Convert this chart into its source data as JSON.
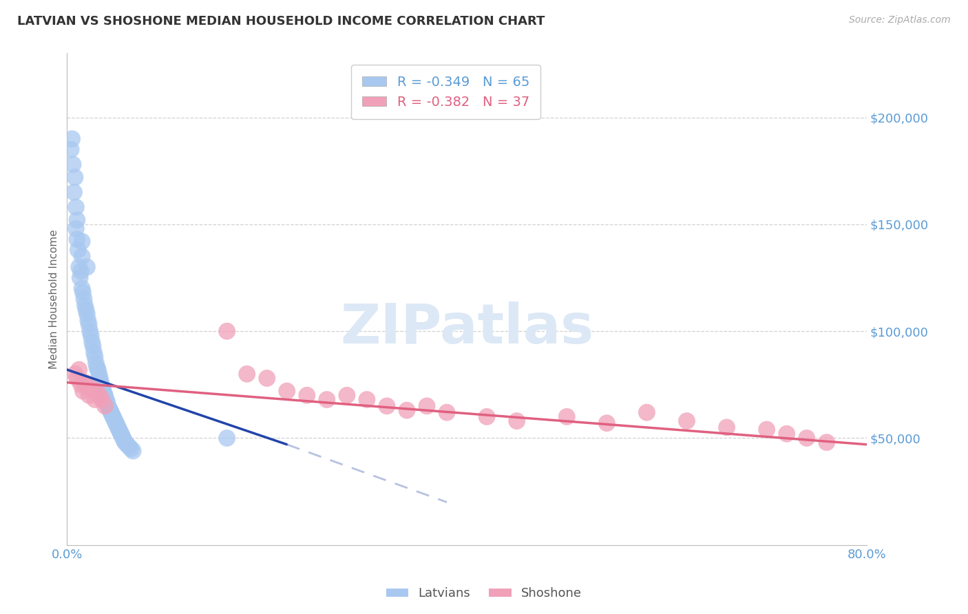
{
  "title": "LATVIAN VS SHOSHONE MEDIAN HOUSEHOLD INCOME CORRELATION CHART",
  "source": "Source: ZipAtlas.com",
  "ylabel": "Median Household Income",
  "xlim": [
    0.0,
    0.8
  ],
  "ylim": [
    0,
    230000
  ],
  "latvian_R": -0.349,
  "latvian_N": 65,
  "shoshone_R": -0.382,
  "shoshone_N": 37,
  "blue_color": "#A8C8F0",
  "blue_line_color": "#2244AA",
  "blue_line_dashed_color": "#8899CC",
  "pink_color": "#F0A0B8",
  "pink_line_color": "#E06080",
  "axis_color": "#5B9BD5",
  "grid_color": "#CCCCCC",
  "background_color": "#FFFFFF",
  "watermark_color": "#DCE8F5",
  "latvian_x": [
    0.004,
    0.005,
    0.006,
    0.007,
    0.008,
    0.009,
    0.009,
    0.01,
    0.01,
    0.011,
    0.012,
    0.013,
    0.014,
    0.015,
    0.015,
    0.016,
    0.017,
    0.018,
    0.019,
    0.02,
    0.021,
    0.022,
    0.023,
    0.024,
    0.025,
    0.026,
    0.027,
    0.028,
    0.029,
    0.03,
    0.031,
    0.032,
    0.033,
    0.034,
    0.035,
    0.036,
    0.037,
    0.038,
    0.039,
    0.04,
    0.041,
    0.042,
    0.043,
    0.044,
    0.045,
    0.046,
    0.047,
    0.048,
    0.049,
    0.05,
    0.051,
    0.052,
    0.053,
    0.054,
    0.055,
    0.056,
    0.057,
    0.058,
    0.06,
    0.062,
    0.064,
    0.066,
    0.015,
    0.02,
    0.16
  ],
  "latvian_y": [
    185000,
    190000,
    178000,
    165000,
    172000,
    158000,
    148000,
    152000,
    143000,
    138000,
    130000,
    125000,
    128000,
    120000,
    135000,
    118000,
    115000,
    112000,
    110000,
    108000,
    105000,
    103000,
    100000,
    98000,
    95000,
    93000,
    90000,
    88000,
    85000,
    83000,
    82000,
    80000,
    78000,
    76000,
    74000,
    73000,
    71000,
    70000,
    68000,
    67000,
    65000,
    64000,
    63000,
    62000,
    61000,
    60000,
    59000,
    58000,
    57000,
    56000,
    55000,
    54000,
    53000,
    52000,
    51000,
    50000,
    49000,
    48000,
    47000,
    46000,
    45000,
    44000,
    142000,
    130000,
    50000
  ],
  "shoshone_x": [
    0.008,
    0.01,
    0.012,
    0.014,
    0.016,
    0.018,
    0.02,
    0.022,
    0.025,
    0.028,
    0.03,
    0.032,
    0.035,
    0.038,
    0.16,
    0.18,
    0.2,
    0.22,
    0.24,
    0.26,
    0.28,
    0.3,
    0.32,
    0.34,
    0.36,
    0.38,
    0.42,
    0.45,
    0.5,
    0.54,
    0.58,
    0.62,
    0.66,
    0.7,
    0.72,
    0.74,
    0.76
  ],
  "shoshone_y": [
    80000,
    78000,
    82000,
    75000,
    72000,
    76000,
    74000,
    70000,
    73000,
    68000,
    72000,
    70000,
    68000,
    65000,
    100000,
    80000,
    78000,
    72000,
    70000,
    68000,
    70000,
    68000,
    65000,
    63000,
    65000,
    62000,
    60000,
    58000,
    60000,
    57000,
    62000,
    58000,
    55000,
    54000,
    52000,
    50000,
    48000
  ],
  "blue_line_x0": 0.0,
  "blue_line_x1": 0.22,
  "blue_line_x2": 0.38,
  "blue_line_y0": 82000,
  "blue_line_y1": 47000,
  "blue_line_y2": 20000,
  "pink_line_x0": 0.0,
  "pink_line_x1": 0.8,
  "pink_line_y0": 76000,
  "pink_line_y1": 47000
}
